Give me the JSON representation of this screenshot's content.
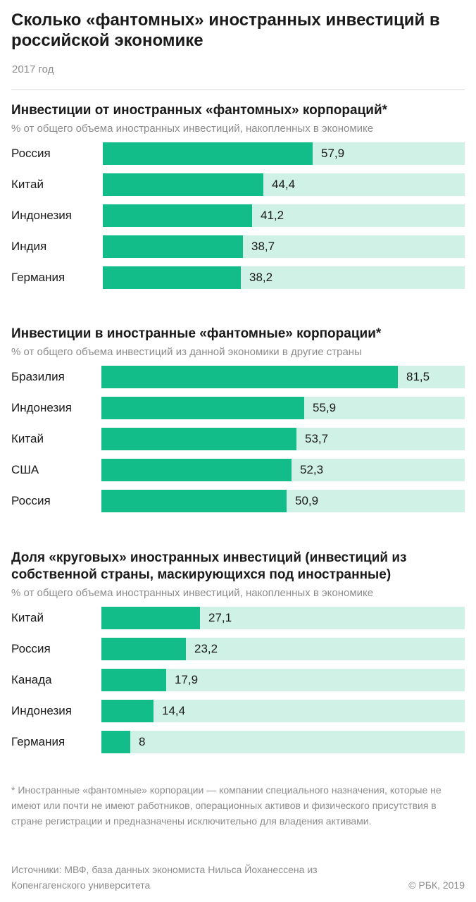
{
  "title": "Сколько «фантомных» иностранных инвестиций в российской экономике",
  "year": "2017 год",
  "footnote": "* Иностранные «фантомные» корпорации — компании специального назначения, которые не имеют или почти не имеют работников, операционных активов и физического присутствия в стране регистрации и предназначены исключительно для владения активами.",
  "sources": "Источники: МВФ, база данных экономиста Нильса Йоханессена из Копенгагенского университета",
  "copyright": "© РБК, 2019",
  "colors": {
    "bar": "#13bd8a",
    "track": "#cff1e6"
  },
  "chart_data": [
    {
      "type": "bar",
      "orientation": "horizontal",
      "title": "Инвестиции от иностранных «фантомных» корпораций*",
      "subtitle": "% от общего объема иностранных инвестиций, накопленных в экономике",
      "categories": [
        "Россия",
        "Китай",
        "Индонезия",
        "Индия",
        "Германия"
      ],
      "values": [
        57.9,
        44.4,
        41.2,
        38.7,
        38.2
      ],
      "value_labels": [
        "57,9",
        "44,4",
        "41,2",
        "38,7",
        "38,2"
      ],
      "xlim": [
        0,
        100
      ]
    },
    {
      "type": "bar",
      "orientation": "horizontal",
      "title": "Инвестиции в иностранные «фантомные» корпорации*",
      "subtitle": "% от общего объема инвестиций из данной экономики в другие страны",
      "categories": [
        "Бразилия",
        "Индонезия",
        "Китай",
        "США",
        "Россия"
      ],
      "values": [
        81.5,
        55.9,
        53.7,
        52.3,
        50.9
      ],
      "value_labels": [
        "81,5",
        "55,9",
        "53,7",
        "52,3",
        "50,9"
      ],
      "xlim": [
        0,
        100
      ]
    },
    {
      "type": "bar",
      "orientation": "horizontal",
      "title": "Доля «круговых» иностранных инвестиций (инвестиций из собственной страны, маскирующихся под иностранные)",
      "subtitle": "% от общего объема иностранных инвестиций, накопленных в экономике",
      "categories": [
        "Китай",
        "Россия",
        "Канада",
        "Индонезия",
        "Германия"
      ],
      "values": [
        27.1,
        23.2,
        17.9,
        14.4,
        8
      ],
      "value_labels": [
        "27,1",
        "23,2",
        "17,9",
        "14,4",
        "8"
      ],
      "xlim": [
        0,
        100
      ]
    }
  ]
}
